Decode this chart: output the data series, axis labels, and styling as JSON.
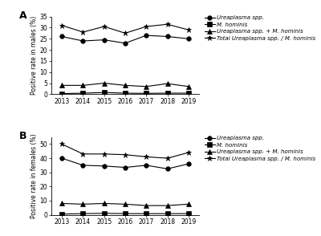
{
  "years": [
    2013,
    2014,
    2015,
    2016,
    2017,
    2018,
    2019
  ],
  "males": {
    "ureaplasma": [
      26,
      24,
      24.5,
      23,
      26.5,
      26,
      25
    ],
    "m_hominis": [
      0.3,
      0.5,
      0.8,
      0.5,
      0.4,
      0.5,
      0.5
    ],
    "ureaplasma_m_hominis": [
      4.0,
      4.0,
      5.0,
      4.0,
      3.5,
      4.8,
      3.5
    ],
    "total": [
      31,
      28,
      30.5,
      27.5,
      30.5,
      31.5,
      29
    ]
  },
  "females": {
    "ureaplasma": [
      40,
      35,
      34.5,
      33.5,
      35,
      32.5,
      36
    ],
    "m_hominis": [
      0.5,
      0.8,
      1.0,
      0.8,
      0.8,
      0.8,
      0.8
    ],
    "ureaplasma_m_hominis": [
      8.0,
      7.5,
      8.0,
      7.5,
      6.5,
      6.5,
      7.5
    ],
    "total": [
      50,
      43,
      43,
      42.5,
      41,
      40,
      44
    ]
  },
  "legend_labels": [
    "Ureaplasma spp.",
    "M. hominis",
    "Ureaplasma spp. + M. hominis",
    "Total Ureaplasma spp. / M. hominis"
  ],
  "markers": [
    "o",
    "s",
    "^",
    "*"
  ],
  "panel_A_ylim": [
    0,
    35
  ],
  "panel_B_ylim": [
    0,
    55
  ],
  "panel_A_yticks": [
    0,
    5,
    10,
    15,
    20,
    25,
    30,
    35
  ],
  "panel_B_yticks": [
    0,
    10,
    20,
    30,
    40,
    50
  ],
  "ylabel_A": "Positive rate in males (%)",
  "ylabel_B": "Positive rate in females (%)"
}
